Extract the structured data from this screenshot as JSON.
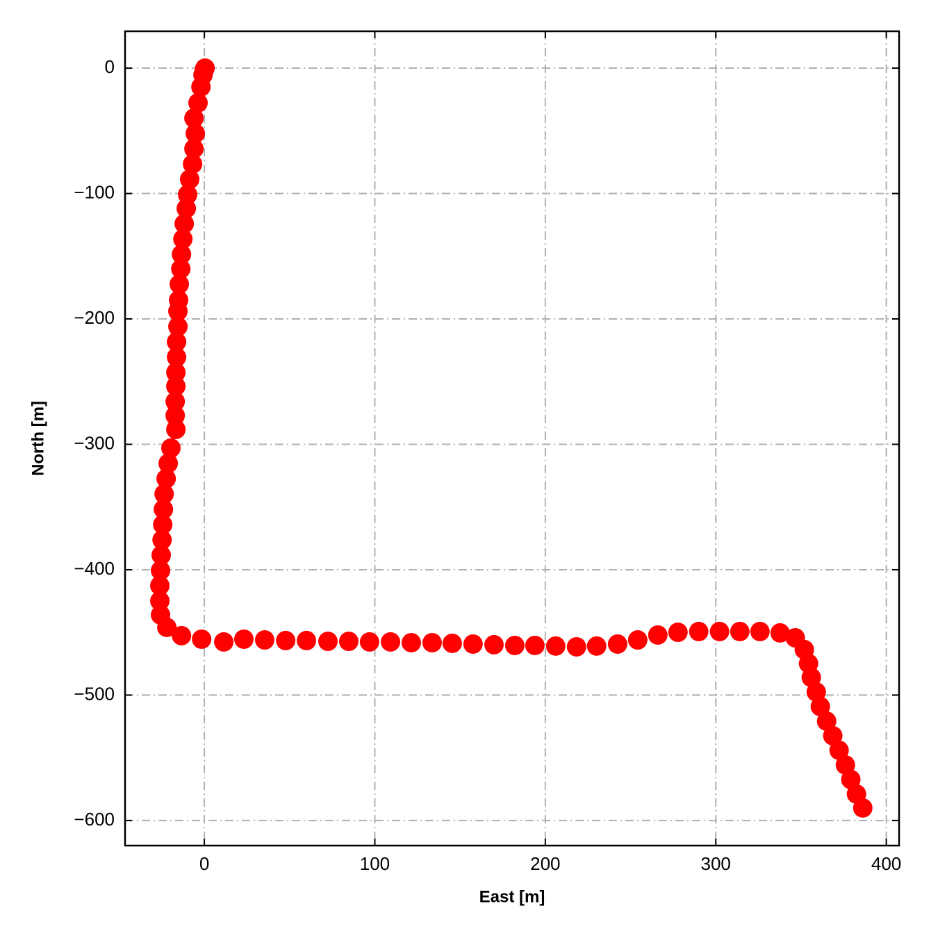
{
  "chart_data": {
    "type": "scatter",
    "x_label": "East [m]",
    "y_label": "North [m]",
    "color": "#ff0000",
    "grid": true,
    "xlim": [
      -46.5,
      407.5
    ],
    "ylim": [
      -620,
      29.4
    ],
    "xticks": [
      0,
      100,
      200,
      300,
      400
    ],
    "yticks": [
      {
        "value": -600,
        "label": "−600"
      },
      {
        "value": -500,
        "label": "−500"
      },
      {
        "value": -400,
        "label": "−400"
      },
      {
        "value": -300,
        "label": "−300"
      },
      {
        "value": -200,
        "label": "−200"
      },
      {
        "value": -100,
        "label": "−100"
      },
      0
    ],
    "x": [
      0.4,
      0,
      -0.8,
      -2.0,
      -3.7,
      -6.1,
      -5.3,
      -6.1,
      -6.9,
      -8.6,
      -9.8,
      -10.6,
      -11.8,
      -12.6,
      -13.4,
      -13.8,
      -14.7,
      -15.1,
      -15.5,
      -15.5,
      -16.3,
      -16.3,
      -16.7,
      -16.7,
      -17.1,
      -17.1,
      -16.7,
      -19.6,
      -21.2,
      -22.4,
      -23.6,
      -24.0,
      -24.4,
      -24.8,
      -25.3,
      -25.7,
      -26.1,
      -26.1,
      -25.7,
      -22.0,
      -13.4,
      -1.6,
      11.4,
      23.2,
      35.4,
      47.7,
      59.9,
      72.5,
      84.7,
      96.9,
      109.2,
      121.4,
      133.6,
      145.4,
      157.6,
      169.9,
      182.1,
      193.9,
      206.1,
      218.3,
      230.1,
      242.4,
      254.2,
      266.0,
      277.8,
      290.0,
      302.2,
      314.1,
      325.9,
      337.7,
      346.6,
      351.9,
      354.4,
      356.0,
      358.9,
      361.3,
      365.0,
      368.6,
      372.3,
      376.0,
      379.2,
      382.5,
      386.2
    ],
    "y": [
      0,
      -1.1,
      -5.5,
      -15.0,
      -27.7,
      -39.9,
      -52.1,
      -64.3,
      -76.5,
      -88.6,
      -100.8,
      -111.9,
      -124.1,
      -136.3,
      -148.5,
      -160.1,
      -172.3,
      -185.0,
      -193.9,
      -206.1,
      -218.3,
      -230.5,
      -242.7,
      -253.7,
      -265.9,
      -277.0,
      -288.1,
      -303.0,
      -315.2,
      -327.4,
      -339.6,
      -351.8,
      -364.0,
      -376.2,
      -388.4,
      -400.6,
      -412.7,
      -424.9,
      -436.0,
      -446.0,
      -452.6,
      -455.4,
      -457.6,
      -455.4,
      -456.0,
      -456.5,
      -456.5,
      -457.1,
      -457.1,
      -457.6,
      -457.6,
      -458.2,
      -458.2,
      -458.7,
      -459.3,
      -459.8,
      -460.4,
      -460.4,
      -460.9,
      -461.5,
      -460.9,
      -459.3,
      -456.0,
      -452.1,
      -449.9,
      -449.3,
      -449.3,
      -449.3,
      -449.3,
      -450.4,
      -454.3,
      -463.7,
      -474.8,
      -485.9,
      -497.5,
      -509.1,
      -520.8,
      -532.4,
      -544.0,
      -555.7,
      -567.3,
      -578.9,
      -590.0
    ]
  }
}
